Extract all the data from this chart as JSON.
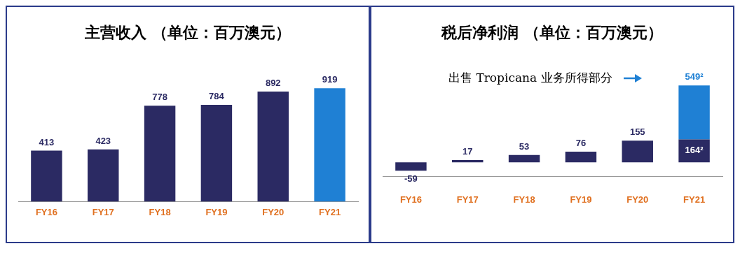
{
  "chart_data": [
    {
      "type": "bar",
      "title": "主营收入 （单位：百万澳元）",
      "categories": [
        "FY16",
        "FY17",
        "FY18",
        "FY19",
        "FY20",
        "FY21"
      ],
      "values": [
        413,
        423,
        778,
        784,
        892,
        919
      ],
      "colors": [
        "#2b2a63",
        "#2b2a63",
        "#2b2a63",
        "#2b2a63",
        "#2b2a63",
        "#1f80d4"
      ],
      "data_labels": true
    },
    {
      "type": "bar",
      "title": "税后净利润 （单位：百万澳元）",
      "categories": [
        "FY16",
        "FY17",
        "FY18",
        "FY19",
        "FY20",
        "FY21"
      ],
      "stacked": true,
      "series": [
        {
          "color": "#2b2a63",
          "values": [
            -59,
            17,
            53,
            76,
            155,
            164
          ],
          "value_labels": [
            "-59",
            "17",
            "53",
            "76",
            "155",
            "164²"
          ]
        },
        {
          "color": "#1f80d4",
          "values": [
            null,
            null,
            null,
            null,
            null,
            385
          ]
        }
      ],
      "totals": [
        null,
        null,
        null,
        null,
        null,
        "549²"
      ],
      "annotations": [
        "出售 Tropicana 业务所得部分"
      ]
    }
  ]
}
